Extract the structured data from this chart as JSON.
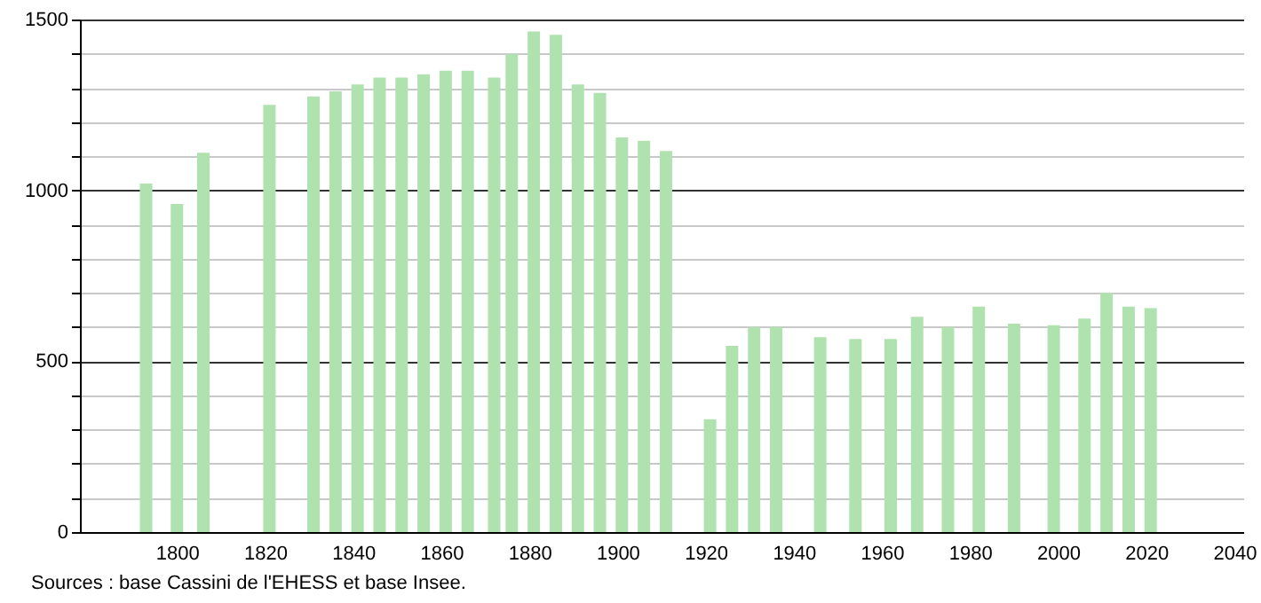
{
  "chart_data": {
    "type": "bar",
    "annotations": [
      "Sources : base Cassini de l'EHESS et base Insee."
    ],
    "x": [
      1793,
      1800,
      1806,
      1821,
      1831,
      1836,
      1841,
      1846,
      1851,
      1856,
      1861,
      1866,
      1872,
      1876,
      1881,
      1886,
      1891,
      1896,
      1901,
      1906,
      1911,
      1921,
      1926,
      1931,
      1936,
      1946,
      1954,
      1962,
      1968,
      1975,
      1982,
      1990,
      1999,
      2006,
      2011,
      2016,
      2021
    ],
    "series": [
      {
        "color": "#b0e2b0",
        "values": [
          1020,
          960,
          1110,
          1250,
          1275,
          1290,
          1310,
          1330,
          1330,
          1340,
          1350,
          1350,
          1330,
          1400,
          1465,
          1455,
          1310,
          1285,
          1155,
          1145,
          1115,
          330,
          545,
          600,
          600,
          570,
          565,
          565,
          630,
          600,
          660,
          610,
          605,
          625,
          700,
          660,
          655
        ]
      }
    ],
    "xlim": [
      1780,
      2040
    ],
    "xticks": [
      1800,
      1820,
      1840,
      1860,
      1880,
      1900,
      1920,
      1940,
      1960,
      1980,
      2000,
      2020,
      2040
    ],
    "ylim": [
      0,
      1500
    ],
    "yticks": [
      0,
      {
        "value": 100,
        "label": null
      },
      {
        "value": 200,
        "label": null
      },
      {
        "value": 300,
        "label": null
      },
      {
        "value": 400,
        "label": null
      },
      500,
      {
        "value": 600,
        "label": null
      },
      {
        "value": 700,
        "label": null
      },
      {
        "value": 800,
        "label": null
      },
      {
        "value": 900,
        "label": null
      },
      1000,
      {
        "value": 1100,
        "label": null
      },
      {
        "value": 1200,
        "label": null
      },
      {
        "value": 1300,
        "label": null
      },
      {
        "value": 1400,
        "label": null
      },
      1500
    ],
    "grid": "y"
  }
}
